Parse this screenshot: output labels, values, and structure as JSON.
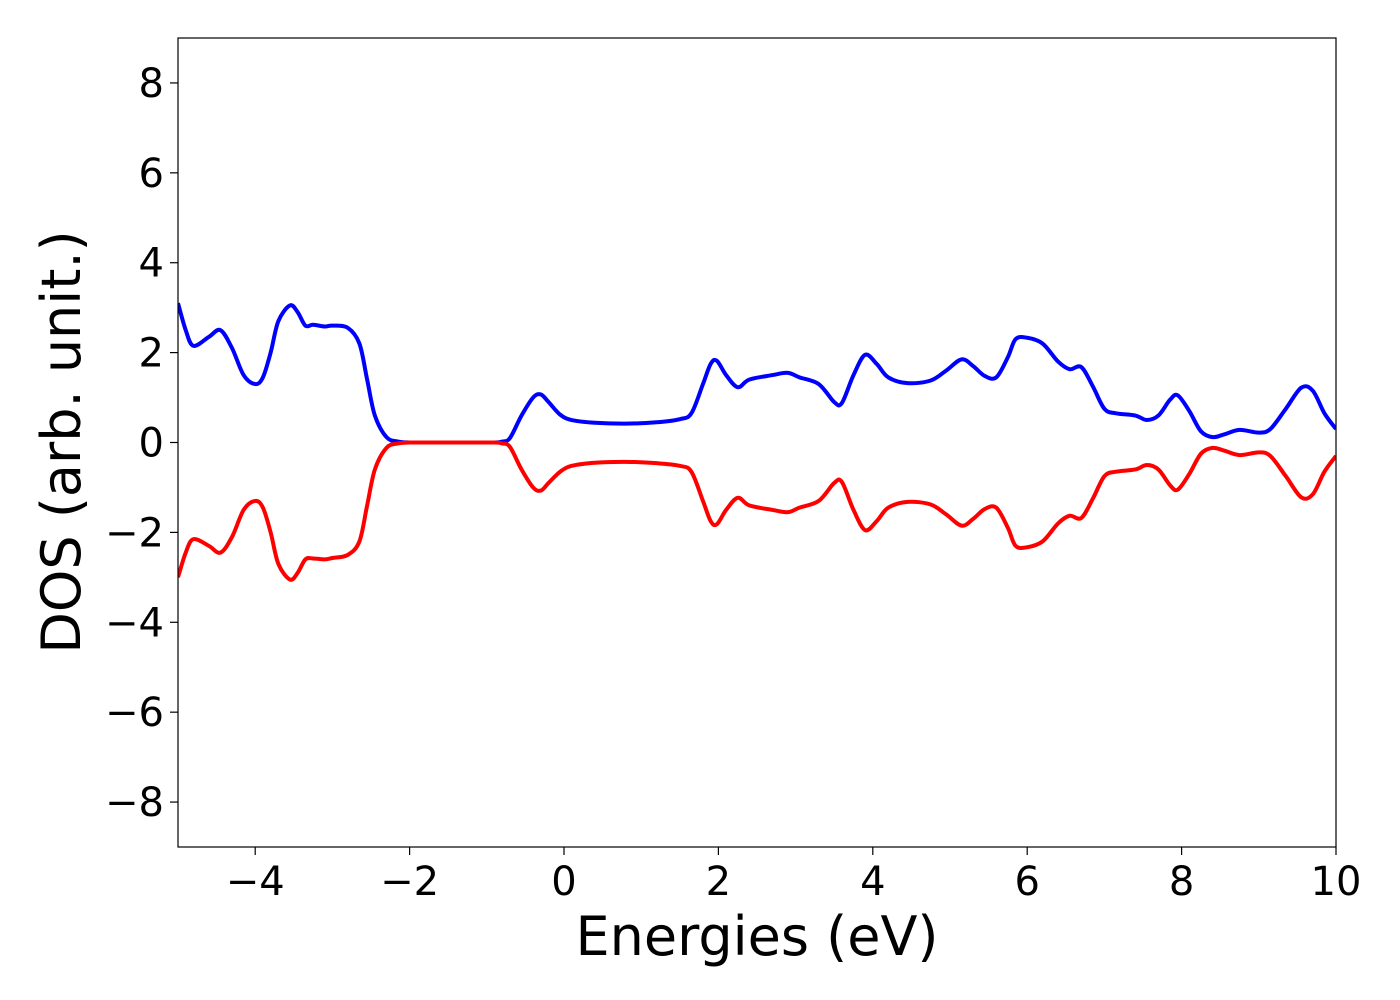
{
  "chart_data": {
    "type": "line",
    "title": "",
    "xlabel": "Energies (eV)",
    "ylabel": "DOS (arb. unit.)",
    "xlim": [
      -5,
      10
    ],
    "ylim": [
      -9,
      9
    ],
    "xticks": [
      -4,
      -2,
      0,
      2,
      4,
      6,
      8,
      10
    ],
    "yticks": [
      -8,
      -6,
      -4,
      -2,
      0,
      2,
      4,
      6,
      8
    ],
    "xtick_labels": [
      "−4",
      "−2",
      "0",
      "2",
      "4",
      "6",
      "8",
      "10"
    ],
    "ytick_labels": [
      "−8",
      "−6",
      "−4",
      "−2",
      "0",
      "2",
      "4",
      "6",
      "8"
    ],
    "grid": false,
    "legend": "none",
    "series": [
      {
        "color": "#0000ff",
        "x": [
          -5.0,
          -4.9,
          -4.8,
          -4.6,
          -4.45,
          -4.3,
          -4.15,
          -4.0,
          -3.9,
          -3.8,
          -3.7,
          -3.55,
          -3.45,
          -3.35,
          -3.25,
          -3.1,
          -3.0,
          -2.8,
          -2.65,
          -2.55,
          -2.45,
          -2.3,
          -2.15,
          -2.0,
          -1.8,
          -1.5,
          -1.2,
          -0.9,
          -0.8,
          -0.7,
          -0.55,
          -0.4,
          -0.3,
          -0.2,
          -0.05,
          0.1,
          0.4,
          0.8,
          1.2,
          1.5,
          1.65,
          1.8,
          1.9,
          1.98,
          2.1,
          2.25,
          2.4,
          2.7,
          2.9,
          3.05,
          3.3,
          3.5,
          3.6,
          3.75,
          3.9,
          4.05,
          4.2,
          4.45,
          4.75,
          4.95,
          5.15,
          5.3,
          5.45,
          5.6,
          5.75,
          5.85,
          6.0,
          6.2,
          6.4,
          6.55,
          6.7,
          6.85,
          7.0,
          7.15,
          7.4,
          7.55,
          7.7,
          7.85,
          7.95,
          8.1,
          8.25,
          8.4,
          8.55,
          8.75,
          9.0,
          9.15,
          9.35,
          9.55,
          9.7,
          9.85,
          10.0
        ],
        "y": [
          3.1,
          2.5,
          2.15,
          2.35,
          2.5,
          2.1,
          1.5,
          1.3,
          1.45,
          2.0,
          2.7,
          3.05,
          2.9,
          2.6,
          2.62,
          2.58,
          2.6,
          2.55,
          2.2,
          1.4,
          0.6,
          0.12,
          0.02,
          0.0,
          0.0,
          0.0,
          0.0,
          0.0,
          0.02,
          0.1,
          0.6,
          1.0,
          1.07,
          0.9,
          0.62,
          0.5,
          0.44,
          0.42,
          0.45,
          0.52,
          0.65,
          1.3,
          1.75,
          1.82,
          1.5,
          1.23,
          1.4,
          1.5,
          1.55,
          1.45,
          1.3,
          0.9,
          0.88,
          1.5,
          1.95,
          1.75,
          1.45,
          1.32,
          1.38,
          1.6,
          1.85,
          1.7,
          1.48,
          1.45,
          1.9,
          2.3,
          2.33,
          2.2,
          1.8,
          1.63,
          1.68,
          1.25,
          0.75,
          0.65,
          0.6,
          0.5,
          0.6,
          0.95,
          1.05,
          0.7,
          0.25,
          0.12,
          0.18,
          0.28,
          0.22,
          0.3,
          0.75,
          1.22,
          1.15,
          0.65,
          0.3
        ]
      },
      {
        "color": "#ff0000",
        "x": [
          -5.0,
          -4.9,
          -4.8,
          -4.6,
          -4.45,
          -4.3,
          -4.15,
          -4.0,
          -3.9,
          -3.8,
          -3.7,
          -3.55,
          -3.45,
          -3.35,
          -3.25,
          -3.1,
          -3.0,
          -2.8,
          -2.65,
          -2.55,
          -2.45,
          -2.3,
          -2.15,
          -2.0,
          -1.8,
          -1.5,
          -1.2,
          -0.9,
          -0.8,
          -0.7,
          -0.55,
          -0.4,
          -0.3,
          -0.2,
          -0.05,
          0.1,
          0.4,
          0.8,
          1.2,
          1.5,
          1.65,
          1.8,
          1.9,
          1.98,
          2.1,
          2.25,
          2.4,
          2.7,
          2.9,
          3.05,
          3.3,
          3.5,
          3.6,
          3.75,
          3.9,
          4.05,
          4.2,
          4.45,
          4.75,
          4.95,
          5.15,
          5.3,
          5.45,
          5.6,
          5.75,
          5.85,
          6.0,
          6.2,
          6.4,
          6.55,
          6.7,
          6.85,
          7.0,
          7.15,
          7.4,
          7.55,
          7.7,
          7.85,
          7.95,
          8.1,
          8.25,
          8.4,
          8.55,
          8.75,
          9.0,
          9.15,
          9.35,
          9.55,
          9.7,
          9.85,
          10.0
        ],
        "y": [
          -3.0,
          -2.45,
          -2.15,
          -2.3,
          -2.45,
          -2.1,
          -1.5,
          -1.3,
          -1.45,
          -2.0,
          -2.7,
          -3.05,
          -2.9,
          -2.6,
          -2.58,
          -2.6,
          -2.57,
          -2.5,
          -2.2,
          -1.4,
          -0.6,
          -0.12,
          -0.02,
          0.0,
          0.0,
          0.0,
          0.0,
          0.0,
          -0.02,
          -0.1,
          -0.6,
          -1.0,
          -1.07,
          -0.9,
          -0.65,
          -0.52,
          -0.45,
          -0.43,
          -0.46,
          -0.52,
          -0.65,
          -1.3,
          -1.75,
          -1.82,
          -1.5,
          -1.23,
          -1.4,
          -1.5,
          -1.55,
          -1.45,
          -1.3,
          -0.9,
          -0.88,
          -1.5,
          -1.95,
          -1.75,
          -1.45,
          -1.32,
          -1.38,
          -1.6,
          -1.85,
          -1.7,
          -1.48,
          -1.45,
          -1.9,
          -2.3,
          -2.33,
          -2.2,
          -1.8,
          -1.63,
          -1.68,
          -1.25,
          -0.75,
          -0.65,
          -0.6,
          -0.5,
          -0.6,
          -0.95,
          -1.05,
          -0.7,
          -0.25,
          -0.12,
          -0.18,
          -0.28,
          -0.22,
          -0.3,
          -0.75,
          -1.22,
          -1.15,
          -0.65,
          -0.3
        ]
      }
    ]
  }
}
